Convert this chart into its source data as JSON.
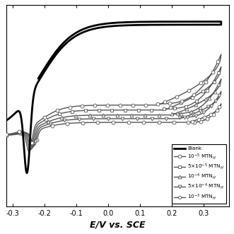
{
  "title": "",
  "xlabel": "E/V vs. SCE",
  "ylabel": "",
  "xlim": [
    -0.32,
    0.38
  ],
  "x_ticks": [
    -0.3,
    -0.2,
    -0.1,
    0.0,
    0.1,
    0.2,
    0.3
  ],
  "background_color": "#ffffff",
  "legend_labels": [
    "Blank",
    "10$^{-5}$ MTN$_{H}$",
    "5×10$^{-5}$ MTN$_{H}$",
    "10$^{-4}$ MTN$_{H}$",
    "5×10$^{-4}$ MTN$_{H}$",
    "10$^{-3}$ MTN$_{H}$"
  ],
  "blank_color": "#000000",
  "inhibitor_color": "#555555",
  "markers": [
    "o",
    "s",
    "^",
    "v",
    "o"
  ],
  "marker_size": 3.5,
  "blank_lw": 2.0,
  "inhibitor_lw": 1.0,
  "ylim": [
    -0.55,
    1.08
  ]
}
